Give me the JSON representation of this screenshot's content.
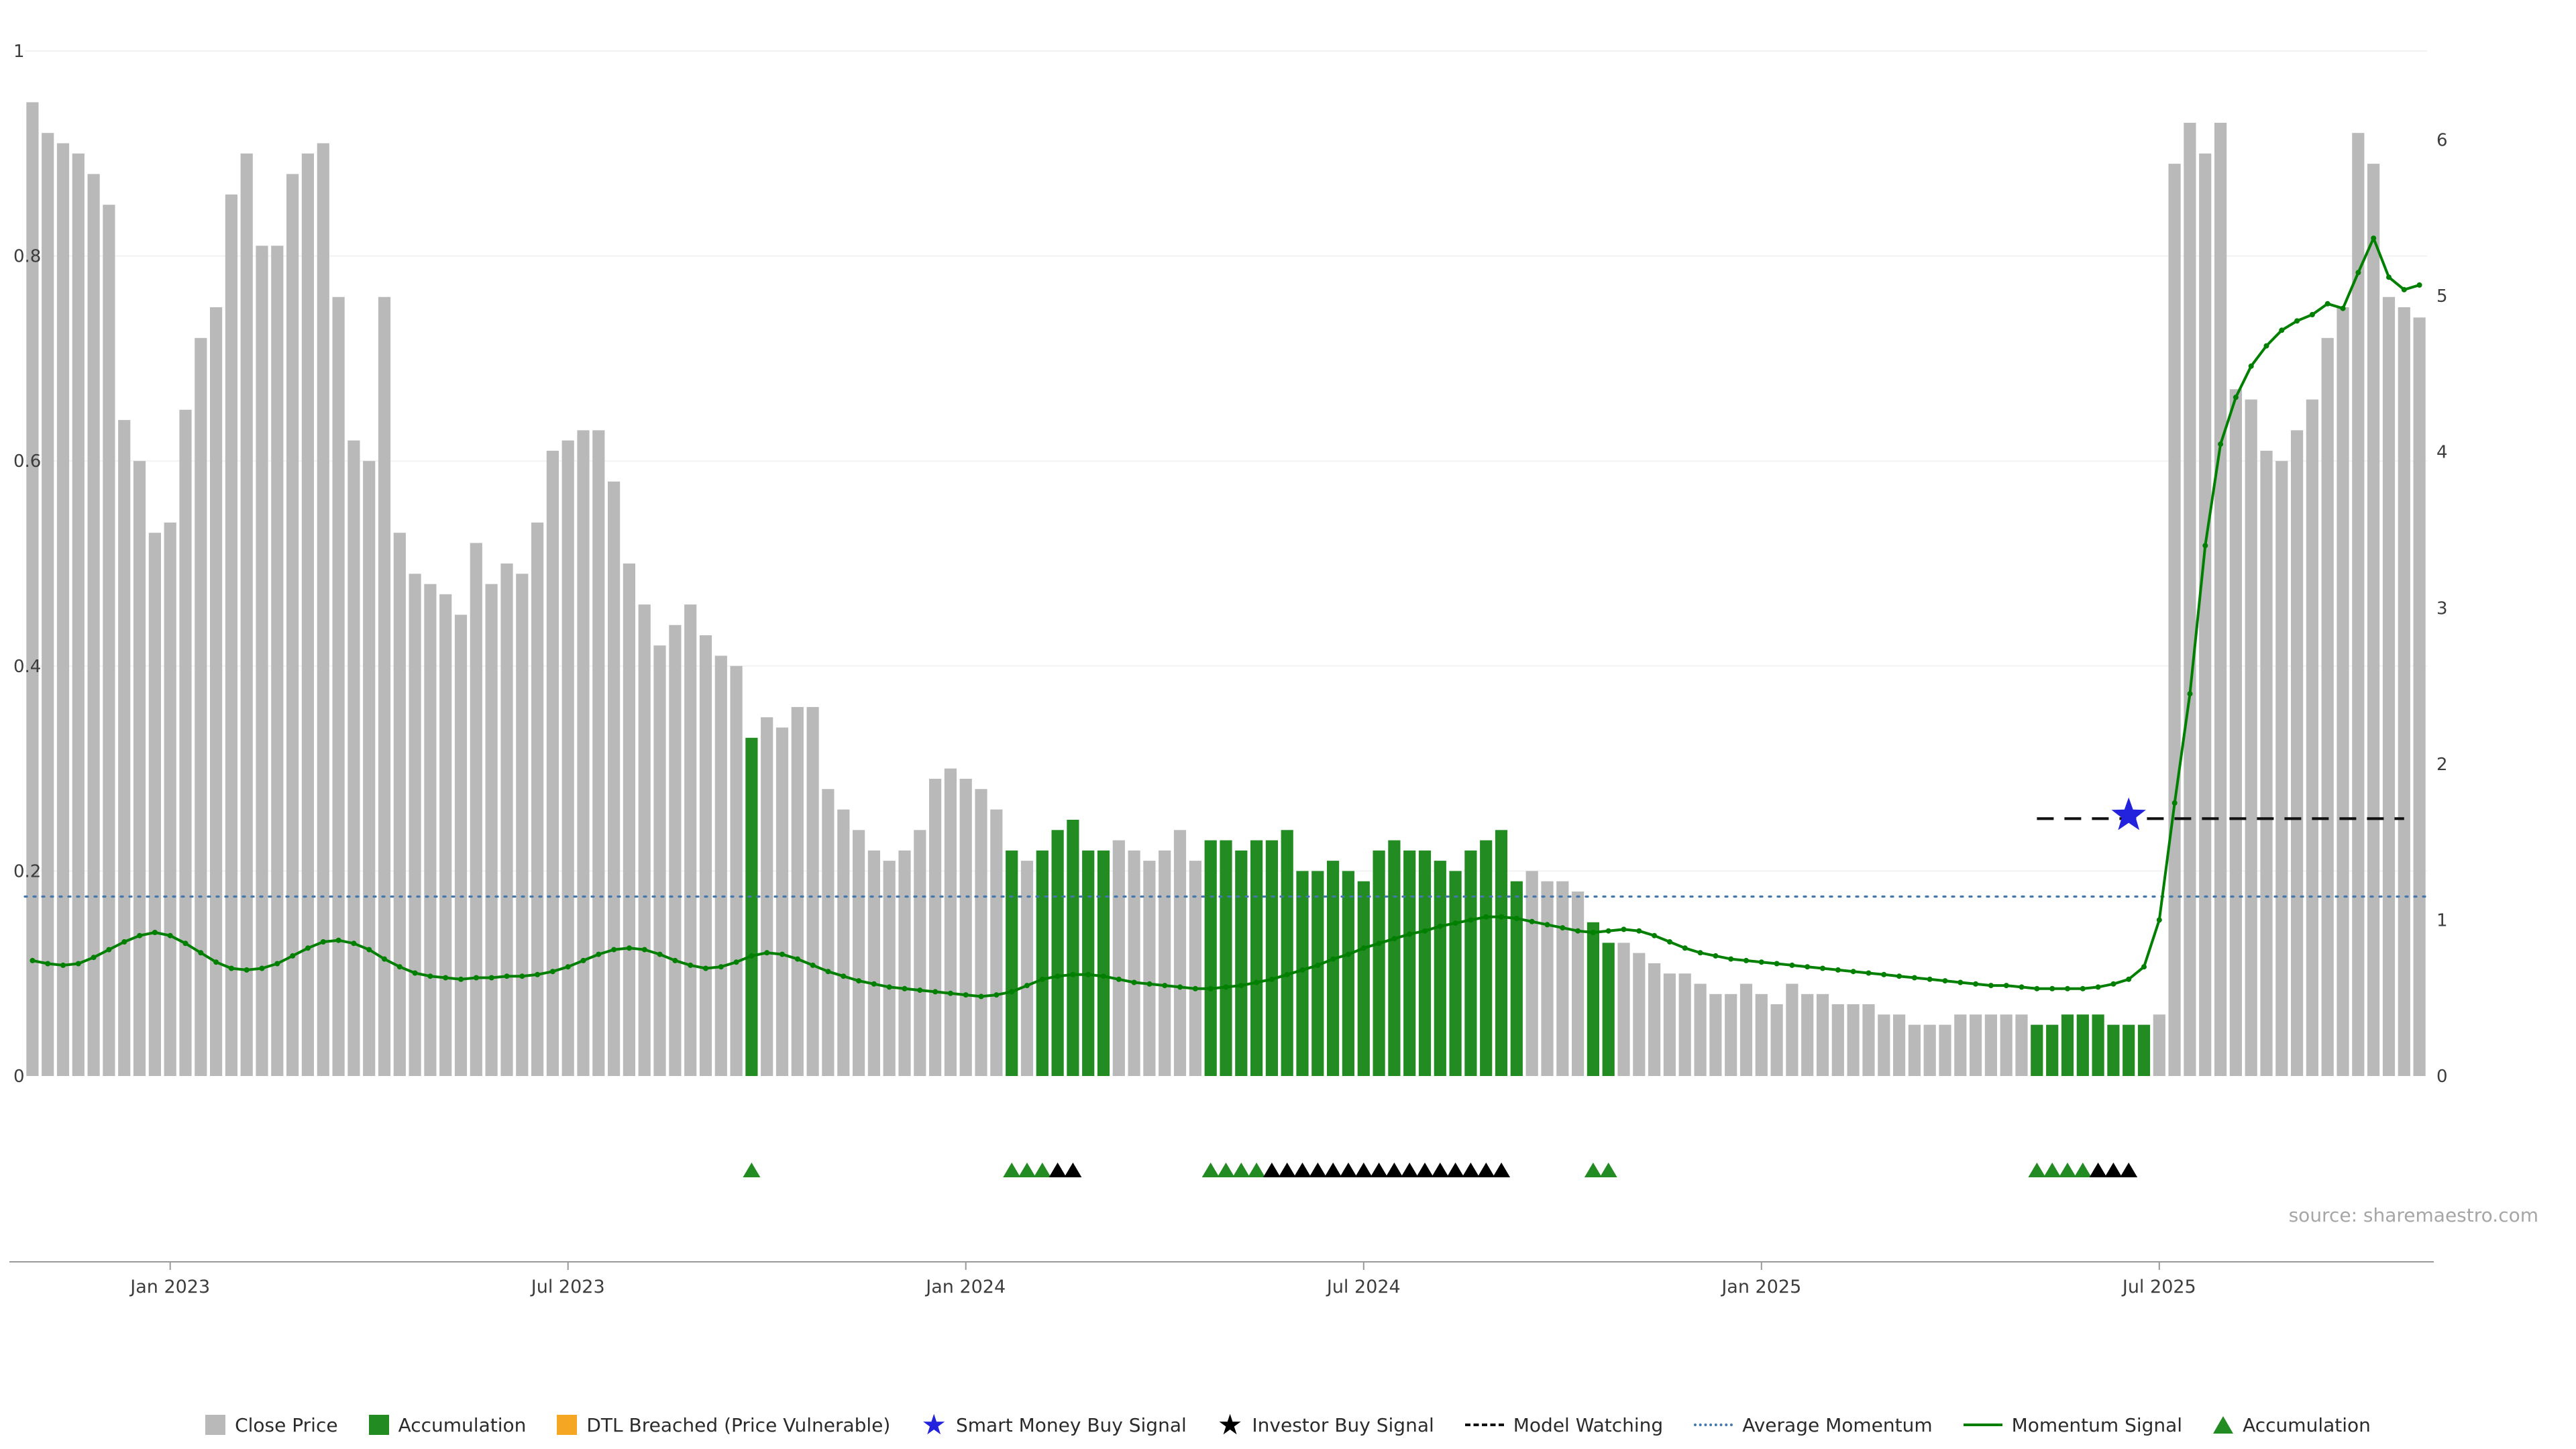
{
  "source": "source: sharemaestro.com",
  "colors": {
    "close_price": "#b9b9b9",
    "accumulation": "#228b22",
    "dtl_breached": "#f5a623",
    "smart_money": "#2323dd",
    "investor": "#000000",
    "model_watching": "#111111",
    "average_momentum": "#4477aa",
    "momentum_signal": "#007f00",
    "axis_text": "#3d3d3d",
    "axis_line": "#999999",
    "grid": "#f2f2f2"
  },
  "chart_data": {
    "type": "bar",
    "description": "Weekly close price bars (left axis 0-1) with accumulation bars highlighted green, momentum signal line (right axis 0-6), average momentum dotted line, model watching dashed line, smart money buy star, and buy-signal triangle markers below the price panel.",
    "legend_position": "bottom",
    "grid": "faint-horizontal",
    "left_axis": {
      "range": [
        0,
        1
      ],
      "ticks": [
        0,
        0.2,
        0.4,
        0.6,
        0.8,
        1
      ],
      "labels": [
        "0",
        "0.2",
        "0.4",
        "0.6",
        "0.8",
        "1"
      ]
    },
    "right_axis": {
      "range": [
        0,
        6.57
      ],
      "ticks": [
        0,
        1,
        2,
        3,
        4,
        5,
        6
      ],
      "labels": [
        "0",
        "1",
        "2",
        "3",
        "4",
        "5",
        "6"
      ]
    },
    "x_axis": {
      "tick_labels": [
        "Jan 2023",
        "Jul 2023",
        "Jan 2024",
        "Jul 2024",
        "Jan 2025",
        "Jul 2025"
      ],
      "tick_indices": [
        9,
        35,
        61,
        87,
        113,
        139
      ]
    },
    "close_price": [
      0.95,
      0.92,
      0.91,
      0.9,
      0.88,
      0.85,
      0.64,
      0.6,
      0.53,
      0.54,
      0.65,
      0.72,
      0.75,
      0.86,
      0.9,
      0.81,
      0.81,
      0.88,
      0.9,
      0.91,
      0.76,
      0.62,
      0.6,
      0.76,
      0.53,
      0.49,
      0.48,
      0.47,
      0.45,
      0.52,
      0.48,
      0.5,
      0.49,
      0.54,
      0.61,
      0.62,
      0.63,
      0.63,
      0.58,
      0.5,
      0.46,
      0.42,
      0.44,
      0.46,
      0.43,
      0.41,
      0.4,
      0.33,
      0.35,
      0.34,
      0.36,
      0.36,
      0.28,
      0.26,
      0.24,
      0.22,
      0.21,
      0.22,
      0.24,
      0.29,
      0.3,
      0.29,
      0.28,
      0.26,
      0.22,
      0.21,
      0.22,
      0.24,
      0.25,
      0.22,
      0.22,
      0.23,
      0.22,
      0.21,
      0.22,
      0.24,
      0.21,
      0.23,
      0.23,
      0.22,
      0.23,
      0.23,
      0.24,
      0.2,
      0.2,
      0.21,
      0.2,
      0.19,
      0.22,
      0.23,
      0.22,
      0.22,
      0.21,
      0.2,
      0.22,
      0.23,
      0.24,
      0.19,
      0.2,
      0.19,
      0.19,
      0.18,
      0.15,
      0.13,
      0.13,
      0.12,
      0.11,
      0.1,
      0.1,
      0.09,
      0.08,
      0.08,
      0.09,
      0.08,
      0.07,
      0.09,
      0.08,
      0.08,
      0.07,
      0.07,
      0.07,
      0.06,
      0.06,
      0.05,
      0.05,
      0.05,
      0.06,
      0.06,
      0.06,
      0.06,
      0.06,
      0.05,
      0.05,
      0.06,
      0.06,
      0.06,
      0.05,
      0.05,
      0.05,
      0.06,
      0.89,
      0.93,
      0.9,
      0.93,
      0.67,
      0.66,
      0.61,
      0.6,
      0.63,
      0.66,
      0.72,
      0.75,
      0.92,
      0.89,
      0.76,
      0.75,
      0.74
    ],
    "accumulation_bar_indices": [
      47,
      64,
      66,
      67,
      68,
      69,
      70,
      77,
      78,
      79,
      80,
      81,
      82,
      83,
      84,
      85,
      86,
      87,
      88,
      89,
      90,
      91,
      92,
      93,
      94,
      95,
      96,
      97,
      102,
      103,
      131,
      132,
      133,
      134,
      135,
      136,
      137,
      138
    ],
    "momentum_signal": [
      0.74,
      0.72,
      0.71,
      0.72,
      0.76,
      0.81,
      0.86,
      0.9,
      0.92,
      0.9,
      0.85,
      0.79,
      0.73,
      0.69,
      0.68,
      0.69,
      0.72,
      0.77,
      0.82,
      0.86,
      0.87,
      0.85,
      0.81,
      0.75,
      0.7,
      0.66,
      0.64,
      0.63,
      0.62,
      0.63,
      0.63,
      0.64,
      0.64,
      0.65,
      0.67,
      0.7,
      0.74,
      0.78,
      0.81,
      0.82,
      0.81,
      0.78,
      0.74,
      0.71,
      0.69,
      0.7,
      0.73,
      0.77,
      0.79,
      0.78,
      0.75,
      0.71,
      0.67,
      0.64,
      0.61,
      0.59,
      0.57,
      0.56,
      0.55,
      0.54,
      0.53,
      0.52,
      0.51,
      0.52,
      0.54,
      0.58,
      0.62,
      0.64,
      0.65,
      0.65,
      0.64,
      0.62,
      0.6,
      0.59,
      0.58,
      0.57,
      0.56,
      0.56,
      0.57,
      0.58,
      0.6,
      0.62,
      0.65,
      0.68,
      0.71,
      0.75,
      0.78,
      0.82,
      0.85,
      0.88,
      0.91,
      0.93,
      0.96,
      0.98,
      1.0,
      1.02,
      1.02,
      1.01,
      0.99,
      0.97,
      0.95,
      0.93,
      0.92,
      0.93,
      0.94,
      0.93,
      0.9,
      0.86,
      0.82,
      0.79,
      0.77,
      0.75,
      0.74,
      0.73,
      0.72,
      0.71,
      0.7,
      0.69,
      0.68,
      0.67,
      0.66,
      0.65,
      0.64,
      0.63,
      0.62,
      0.61,
      0.6,
      0.59,
      0.58,
      0.58,
      0.57,
      0.56,
      0.56,
      0.56,
      0.56,
      0.57,
      0.59,
      0.62,
      0.7,
      1.0,
      1.75,
      2.45,
      3.4,
      4.05,
      4.35,
      4.55,
      4.68,
      4.78,
      4.84,
      4.88,
      4.95,
      4.92,
      5.15,
      5.37,
      5.12,
      5.04,
      5.07
    ],
    "average_momentum": 1.15,
    "model_watching": {
      "value": 1.65,
      "from_index": 131,
      "to_index": 155
    },
    "smart_money_buy_signal": {
      "index": 137,
      "value": 1.67
    },
    "markers": {
      "accumulation": [
        47,
        64,
        65,
        66,
        77,
        78,
        79,
        80,
        102,
        103,
        131,
        132,
        133,
        134
      ],
      "investor": [
        67,
        68,
        81,
        82,
        83,
        84,
        85,
        86,
        87,
        88,
        89,
        90,
        91,
        92,
        93,
        94,
        95,
        96,
        135,
        136,
        137
      ]
    }
  },
  "legend": {
    "items": [
      {
        "label": "Close Price",
        "marker": "square",
        "color": "#b9b9b9",
        "icon": "close-price-swatch-icon"
      },
      {
        "label": "Accumulation",
        "marker": "square",
        "color": "#228b22",
        "icon": "accumulation-swatch-icon"
      },
      {
        "label": "DTL Breached (Price Vulnerable)",
        "marker": "square",
        "color": "#f5a623",
        "icon": "dtl-breached-swatch-icon"
      },
      {
        "label": "Smart Money Buy Signal",
        "marker": "star",
        "color": "#2323dd",
        "icon": "smart-money-star-icon"
      },
      {
        "label": "Investor Buy Signal",
        "marker": "star",
        "color": "#000000",
        "icon": "investor-star-icon"
      },
      {
        "label": "Model Watching",
        "marker": "dashed-line",
        "color": "#111111",
        "icon": "model-watching-line-icon"
      },
      {
        "label": "Average Momentum",
        "marker": "dotted-line",
        "color": "#4477aa",
        "icon": "average-momentum-line-icon"
      },
      {
        "label": "Momentum Signal",
        "marker": "solid-line",
        "color": "#007f00",
        "icon": "momentum-signal-line-icon"
      },
      {
        "label": "Accumulation",
        "marker": "triangle",
        "color": "#228b22",
        "icon": "accumulation-triangle-icon"
      }
    ]
  }
}
